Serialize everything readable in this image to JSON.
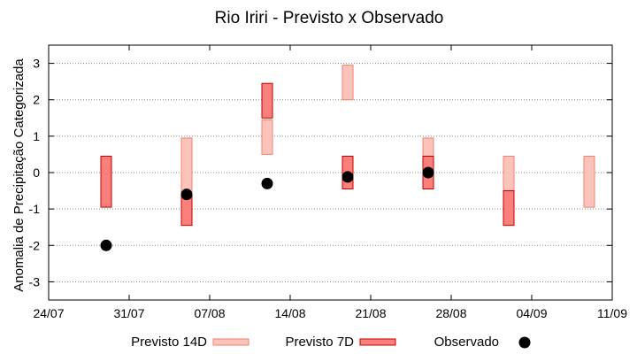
{
  "chart_data": {
    "type": "range-bar-scatter",
    "title": "Rio Iriri - Previsto x Observado",
    "ylabel": "Anomalia de Precipitação Categorizada",
    "xlabel": "",
    "ylim": [
      -3.5,
      3.5
    ],
    "yticks": [
      "3",
      "2",
      "1",
      "0",
      "-1",
      "-2",
      "-3"
    ],
    "ytick_values": [
      3,
      2,
      1,
      0,
      -1,
      -2,
      -3
    ],
    "xlim": [
      "2023-07-24",
      "2023-09-11"
    ],
    "xticks": [
      "24/07",
      "31/07",
      "07/08",
      "14/08",
      "21/08",
      "28/08",
      "04/09",
      "11/09"
    ],
    "xtick_values": [
      "2023-07-24",
      "2023-07-31",
      "2023-08-07",
      "2023-08-14",
      "2023-08-21",
      "2023-08-28",
      "2023-09-04",
      "2023-09-11"
    ],
    "grid": true,
    "legend_position": "bottom",
    "series": [
      {
        "name": "Previsto 14D",
        "fill": "#fcc3bb",
        "stroke": "#f08070",
        "ranges": [
          {
            "x": "2023-08-05",
            "low": -0.95,
            "high": 0.95
          },
          {
            "x": "2023-08-12",
            "low": 0.5,
            "high": 1.45
          },
          {
            "x": "2023-08-19",
            "low": 2.0,
            "high": 2.95
          },
          {
            "x": "2023-08-26",
            "low": -0.45,
            "high": 0.95
          },
          {
            "x": "2023-09-02",
            "low": -0.5,
            "high": 0.45
          },
          {
            "x": "2023-09-09",
            "low": -0.95,
            "high": 0.45
          }
        ]
      },
      {
        "name": "Previsto 7D",
        "fill": "#fb7f7b",
        "stroke": "#c00000",
        "ranges": [
          {
            "x": "2023-07-29",
            "low": -0.95,
            "high": 0.45
          },
          {
            "x": "2023-08-05",
            "low": -1.45,
            "high": -0.6
          },
          {
            "x": "2023-08-12",
            "low": 1.5,
            "high": 2.45
          },
          {
            "x": "2023-08-19",
            "low": -0.45,
            "high": 0.45
          },
          {
            "x": "2023-08-26",
            "low": -0.45,
            "high": 0.45
          },
          {
            "x": "2023-09-02",
            "low": -1.45,
            "high": -0.5
          }
        ]
      },
      {
        "name": "Observado",
        "color": "#000000",
        "points": [
          {
            "x": "2023-07-29",
            "y": -2.0
          },
          {
            "x": "2023-08-05",
            "y": -0.6
          },
          {
            "x": "2023-08-12",
            "y": -0.3
          },
          {
            "x": "2023-08-19",
            "y": -0.12
          },
          {
            "x": "2023-08-26",
            "y": 0.0
          }
        ]
      }
    ]
  }
}
